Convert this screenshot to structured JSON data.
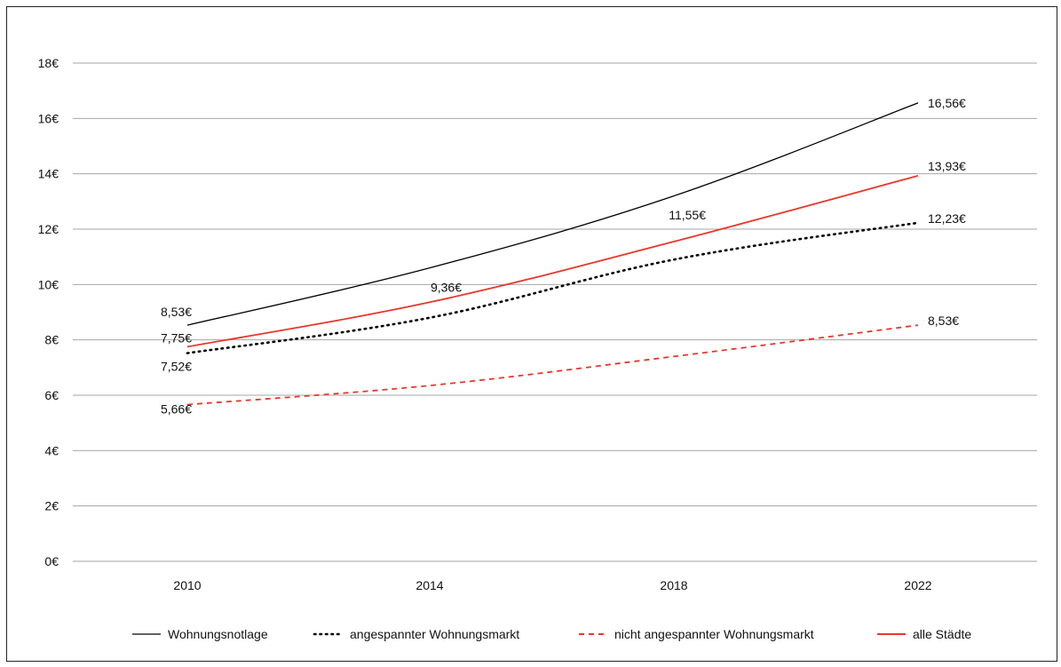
{
  "chart_data": {
    "type": "line",
    "title": "",
    "xlabel": "",
    "ylabel": "",
    "categories": [
      "2010",
      "2014",
      "2018",
      "2022"
    ],
    "ylim": [
      0,
      18
    ],
    "y_ticks": [
      0,
      2,
      4,
      6,
      8,
      10,
      12,
      14,
      16,
      18
    ],
    "y_tick_labels": [
      "0€",
      "2€",
      "4€",
      "6€",
      "8€",
      "10€",
      "12€",
      "14€",
      "16€",
      "18€"
    ],
    "grid": true,
    "legend_position": "bottom",
    "series": [
      {
        "name": "Wohnungsnotlage",
        "values": [
          8.53,
          10.6,
          13.2,
          16.56
        ],
        "color": "#000000",
        "style": "solid",
        "labels": [
          "8,53€",
          null,
          null,
          "16,56€"
        ]
      },
      {
        "name": "angespannter Wohnungsmarkt",
        "values": [
          7.52,
          8.8,
          10.9,
          12.23
        ],
        "color": "#000000",
        "style": "dotted",
        "labels": [
          "7,52€",
          null,
          null,
          "12,23€"
        ]
      },
      {
        "name": "nicht angespannter Wohnungsmarkt",
        "values": [
          5.66,
          6.35,
          7.4,
          8.53
        ],
        "color": "#e8372a",
        "style": "dashed",
        "labels": [
          "5,66€",
          null,
          null,
          "8,53€"
        ]
      },
      {
        "name": "alle Städte",
        "values": [
          7.75,
          9.36,
          11.55,
          13.93
        ],
        "color": "#e8372a",
        "style": "solid",
        "labels": [
          "7,75€",
          "9,36€",
          "11,55€",
          "13,93€"
        ]
      }
    ]
  }
}
